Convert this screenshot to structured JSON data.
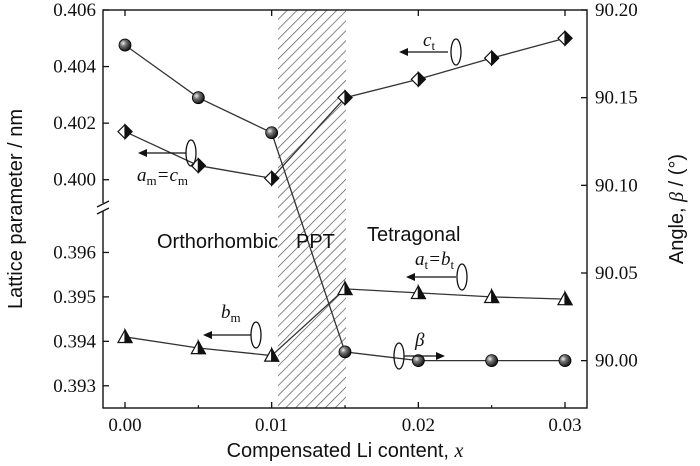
{
  "chart_data": {
    "type": "line",
    "title": "",
    "xlabel": "Compensated Li content, ",
    "xlabel_var": "x",
    "ylabel_left": "Lattice parameter / nm",
    "ylabel_right_main": "Angle, ",
    "ylabel_right_var": "β",
    "ylabel_right_unit": " / (°)",
    "x_ticks": [
      "0.00",
      "0.01",
      "0.02",
      "0.03"
    ],
    "x_tick_values": [
      0.0,
      0.01,
      0.02,
      0.03
    ],
    "xlim": [
      -0.0015,
      0.0315
    ],
    "y_left_broken": true,
    "y_left_upper": {
      "range": [
        0.399,
        0.406
      ],
      "ticks": [
        "0.400",
        "0.402",
        "0.404",
        "0.406"
      ],
      "tick_values": [
        0.4,
        0.402,
        0.404,
        0.406
      ]
    },
    "y_left_lower": {
      "range": [
        0.3925,
        0.397
      ],
      "ticks": [
        "0.393",
        "0.394",
        "0.395",
        "0.396"
      ],
      "tick_values": [
        0.393,
        0.394,
        0.395,
        0.396
      ]
    },
    "y_right": {
      "range": [
        89.973,
        90.2
      ],
      "ticks": [
        "90.00",
        "90.05",
        "90.10",
        "90.15",
        "90.20"
      ],
      "tick_values": [
        90.0,
        90.05,
        90.1,
        90.15,
        90.2
      ]
    },
    "regions": [
      {
        "label": "Orthorhombic",
        "x_range": [
          -0.0015,
          0.01
        ]
      },
      {
        "label": "PPT",
        "x_range": [
          0.01,
          0.015
        ],
        "hatched": true
      },
      {
        "label": "Tetragonal",
        "x_range": [
          0.015,
          0.0315
        ]
      }
    ],
    "series": [
      {
        "name": "c",
        "marker": "half-diamond",
        "axis": "left",
        "points": [
          [
            0.0,
            0.4017
          ],
          [
            0.005,
            0.4005
          ],
          [
            0.01,
            0.40005
          ],
          [
            0.015,
            0.4029
          ],
          [
            0.02,
            0.40355
          ],
          [
            0.025,
            0.4043
          ],
          [
            0.03,
            0.405
          ]
        ]
      },
      {
        "name": "a=b",
        "marker": "half-triangle",
        "axis": "left",
        "points": [
          [
            0.0,
            0.3941
          ],
          [
            0.005,
            0.39385
          ],
          [
            0.01,
            0.39368
          ],
          [
            0.015,
            0.39518
          ],
          [
            0.02,
            0.39509
          ],
          [
            0.025,
            0.395
          ],
          [
            0.03,
            0.39495
          ]
        ]
      },
      {
        "name": "β",
        "marker": "sphere",
        "axis": "right",
        "points": [
          [
            0.0,
            90.18
          ],
          [
            0.005,
            90.15
          ],
          [
            0.01,
            90.13
          ],
          [
            0.015,
            90.005
          ],
          [
            0.02,
            90.0
          ],
          [
            0.025,
            90.0
          ],
          [
            0.03,
            90.0
          ]
        ]
      }
    ],
    "annotations": [
      {
        "main": "c",
        "sub": "t",
        "rest": "",
        "sub2": ""
      },
      {
        "main": "a",
        "sub": "m",
        "rest": "=c",
        "sub2": "m"
      },
      {
        "main": "a",
        "sub": "t",
        "rest": "=b",
        "sub2": "t"
      },
      {
        "main": "b",
        "sub": "m",
        "rest": "",
        "sub2": ""
      },
      {
        "main": "β",
        "sub": "",
        "rest": "",
        "sub2": ""
      }
    ],
    "colors": {
      "ink": "#111111",
      "line": "#333333",
      "hatch": "#555555"
    }
  }
}
